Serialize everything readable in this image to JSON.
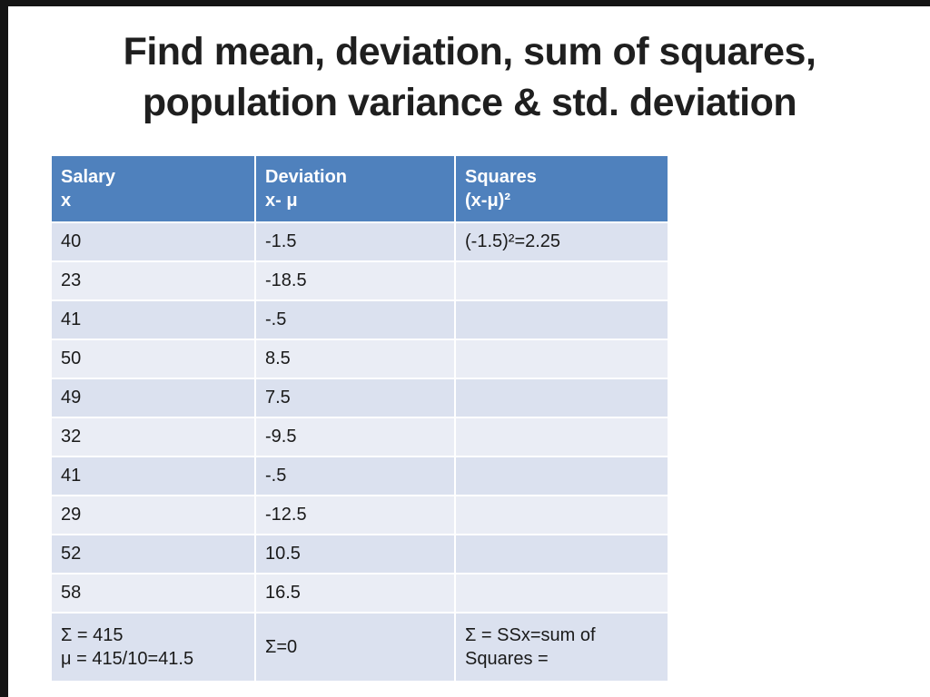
{
  "slide": {
    "title_line1": "Find mean, deviation, sum of squares,",
    "title_line2": "population variance & std. deviation"
  },
  "table": {
    "headers": [
      {
        "line1": "Salary",
        "line2": "x"
      },
      {
        "line1": "Deviation",
        "line2": "x- μ"
      },
      {
        "line1": "Squares",
        "line2": "(x-μ)²"
      }
    ],
    "rows": [
      [
        "40",
        "-1.5",
        "(-1.5)²=2.25"
      ],
      [
        "23",
        "-18.5",
        ""
      ],
      [
        "41",
        "-.5",
        ""
      ],
      [
        "50",
        "8.5",
        ""
      ],
      [
        "49",
        "7.5",
        ""
      ],
      [
        "32",
        "-9.5",
        ""
      ],
      [
        "41",
        "-.5",
        ""
      ],
      [
        "29",
        "-12.5",
        ""
      ],
      [
        "52",
        "10.5",
        ""
      ],
      [
        "58",
        "16.5",
        ""
      ]
    ],
    "totals": {
      "salary_line1": "Σ = 415",
      "salary_line2": "μ = 415/10=41.5",
      "deviation": "Σ=0",
      "squares": "Σ = SSx=sum of Squares ="
    }
  },
  "colors": {
    "header_bg": "#4f81bd",
    "band_dark": "#dbe1ef",
    "band_light": "#eaedf5",
    "title_text": "#1f1f1f"
  }
}
